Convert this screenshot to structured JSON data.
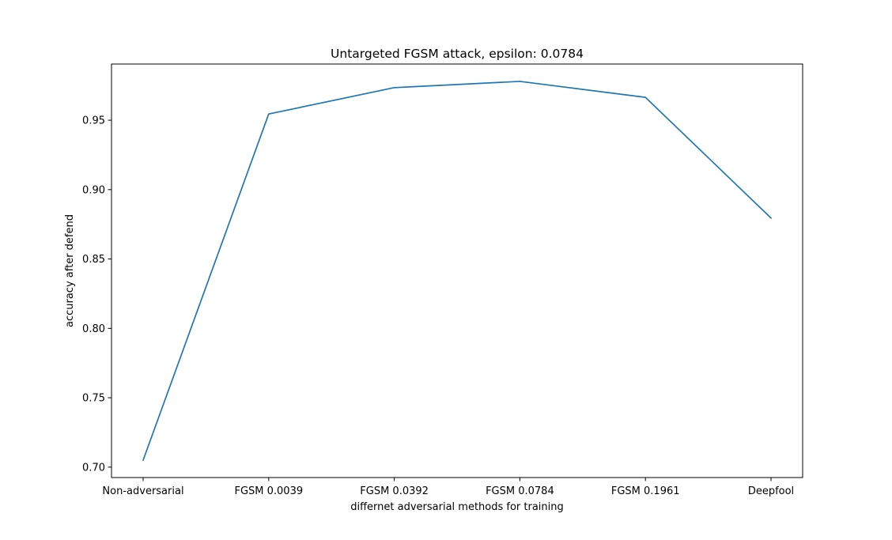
{
  "chart_data": {
    "type": "line",
    "title": "Untargeted FGSM attack, epsilon: 0.0784",
    "xlabel": "differnet adversarial methods for training",
    "ylabel": "accuracy after defend",
    "categories": [
      "Non-adversarial",
      "FGSM 0.0039",
      "FGSM 0.0392",
      "FGSM 0.0784",
      "FGSM 0.1961",
      "Deepfool"
    ],
    "series": [
      {
        "values": [
          0.705,
          0.9545,
          0.9735,
          0.978,
          0.9665,
          0.8795
        ],
        "color": "#1f77b4"
      }
    ],
    "yticks": [
      0.7,
      0.75,
      0.8,
      0.85,
      0.9,
      0.95
    ],
    "ytick_labels": [
      "0.70",
      "0.75",
      "0.80",
      "0.85",
      "0.90",
      "0.95"
    ],
    "ylim": [
      0.6925,
      0.9905
    ],
    "grid": false,
    "legend": "none"
  }
}
